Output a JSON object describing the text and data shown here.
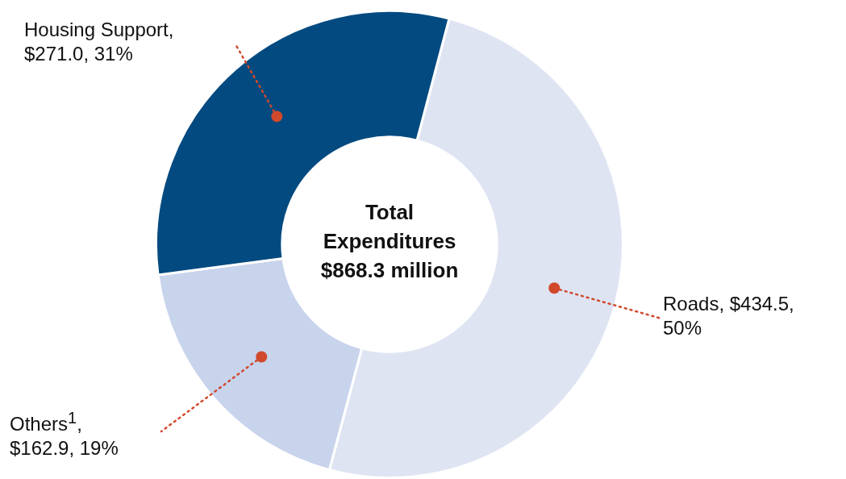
{
  "chart_data": {
    "type": "donut",
    "title": "Total Expenditures $868.3 million",
    "categories": [
      "Roads",
      "Others$^{1}$",
      "Housing Support"
    ],
    "values": [
      434.5,
      162.9,
      271.0
    ],
    "value_labels": [
      ", $434.5, 50%",
      ", $162.9, 19%",
      ", $271.0, 31%"
    ],
    "colors": [
      "#dfe4f3",
      "#c8d3ec",
      "#034a80"
    ],
    "legend": false
  }
}
